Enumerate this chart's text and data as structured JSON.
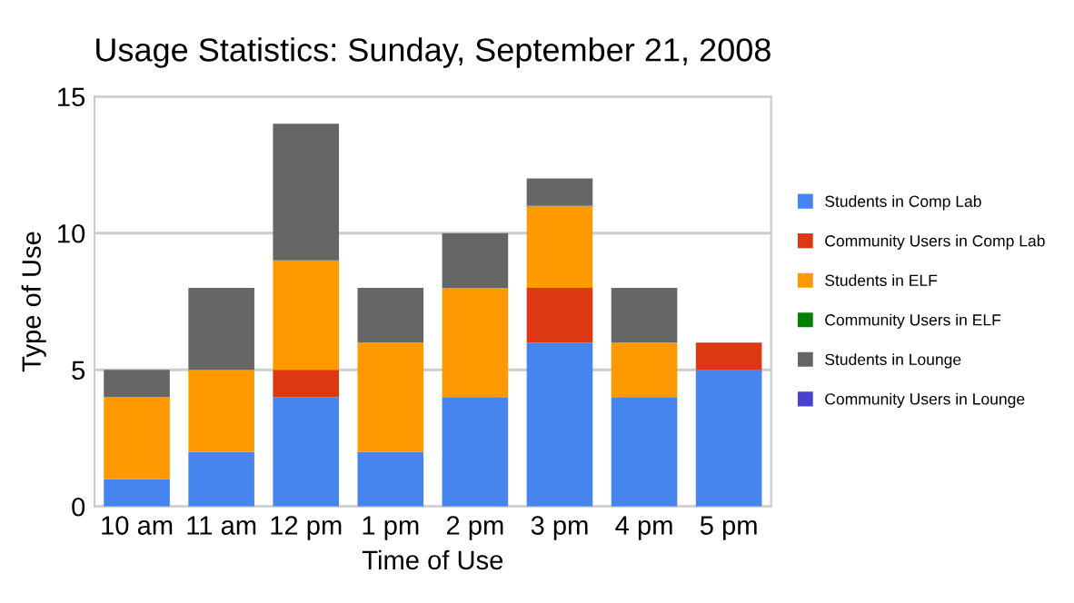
{
  "chart_data": {
    "type": "bar",
    "title": "Usage Statistics: Sunday, September 21, 2008",
    "xlabel": "Time of Use",
    "ylabel": "Type of Use",
    "categories": [
      "10 am",
      "11 am",
      "12 pm",
      "1 pm",
      "2 pm",
      "3 pm",
      "4 pm",
      "5 pm"
    ],
    "stacked": true,
    "ylim": [
      0,
      15
    ],
    "yticks": [
      0,
      5,
      10,
      15
    ],
    "grid": "y",
    "legend": "right",
    "series": [
      {
        "name": "Students in Comp Lab",
        "color": "#4684ee",
        "values": [
          1,
          2,
          4,
          2,
          4,
          6,
          4,
          5
        ]
      },
      {
        "name": "Community Users in Comp Lab",
        "color": "#dc3912",
        "values": [
          0,
          0,
          1,
          0,
          0,
          2,
          0,
          1
        ]
      },
      {
        "name": "Students in ELF",
        "color": "#ff9900",
        "values": [
          3,
          3,
          4,
          4,
          4,
          3,
          2,
          0
        ]
      },
      {
        "name": "Community Users in ELF",
        "color": "#008000",
        "values": [
          0,
          0,
          0,
          0,
          0,
          0,
          0,
          0
        ]
      },
      {
        "name": "Students in Lounge",
        "color": "#666666",
        "values": [
          1,
          3,
          5,
          2,
          2,
          1,
          2,
          0
        ]
      },
      {
        "name": "Community Users in Lounge",
        "color": "#4942cc",
        "values": [
          0,
          0,
          0,
          0,
          0,
          0,
          0,
          0
        ]
      }
    ]
  }
}
